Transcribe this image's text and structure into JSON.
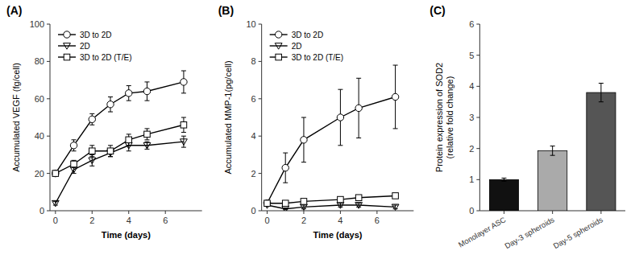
{
  "chart_data": [
    {
      "type": "line",
      "title": "(A)",
      "xlabel": "Time (days)",
      "ylabel": "Accumulated VEGF (fg/cell)",
      "xlim": [
        -0.3,
        8
      ],
      "xticks": [
        0,
        2,
        4,
        6
      ],
      "ylim": [
        0,
        100
      ],
      "yticks": [
        0,
        20,
        40,
        60,
        80,
        100
      ],
      "legend": "upper left",
      "x": [
        0,
        1,
        2,
        3,
        4,
        5,
        7
      ],
      "series": [
        {
          "name": "3D to 2D",
          "color": "#000000",
          "marker": "circle",
          "values": [
            20,
            35,
            49,
            57,
            63,
            64,
            69
          ],
          "yerr": [
            1,
            3,
            3,
            4,
            4,
            5,
            6
          ]
        },
        {
          "name": "2D",
          "color": "#000000",
          "marker": "triangle-down",
          "values": [
            4,
            22,
            27,
            31,
            35,
            35,
            37
          ],
          "yerr": [
            1,
            2,
            3,
            2,
            3,
            2,
            3
          ]
        },
        {
          "name": "3D to 2D (T/E)",
          "color": "#000000",
          "marker": "square",
          "values": [
            20,
            25,
            32,
            32,
            38,
            41,
            46
          ],
          "yerr": [
            1,
            2,
            3,
            3,
            3,
            3,
            4
          ]
        }
      ]
    },
    {
      "type": "line",
      "title": "(B)",
      "xlabel": "Time (days)",
      "ylabel": "Accumulated MMP-1(pg/cell)",
      "xlim": [
        -0.3,
        8
      ],
      "xticks": [
        0,
        2,
        4,
        6
      ],
      "ylim": [
        0,
        10
      ],
      "yticks": [
        0,
        2,
        4,
        6,
        8,
        10
      ],
      "legend": "upper left",
      "x": [
        0,
        1,
        2,
        4,
        5,
        7
      ],
      "series": [
        {
          "name": "3D to 2D",
          "color": "#000000",
          "marker": "circle",
          "values": [
            0.4,
            2.3,
            3.8,
            5.0,
            5.5,
            6.1
          ],
          "yerr": [
            0.1,
            0.8,
            1.2,
            1.5,
            1.6,
            1.7
          ]
        },
        {
          "name": "2D",
          "color": "#000000",
          "marker": "triangle-down",
          "values": [
            0.3,
            0.1,
            0.2,
            0.3,
            0.3,
            0.2
          ],
          "yerr": [
            0.05,
            0.05,
            0.1,
            0.1,
            0.1,
            0.1
          ]
        },
        {
          "name": "3D to 2D (T/E)",
          "color": "#000000",
          "marker": "square",
          "values": [
            0.4,
            0.4,
            0.5,
            0.6,
            0.7,
            0.8
          ],
          "yerr": [
            0.05,
            0.1,
            0.1,
            0.1,
            0.1,
            0.1
          ]
        }
      ]
    },
    {
      "type": "bar",
      "title": "(C)",
      "ylabel": "Protein expression of SOD2\n(relative fold change)",
      "ylim": [
        0,
        6
      ],
      "yticks": [
        0,
        1,
        2,
        3,
        4,
        5,
        6
      ],
      "categories": [
        "Monolayer ASC",
        "Day-3 spheroids",
        "Day-5 spheroids"
      ],
      "values": [
        1.0,
        1.93,
        3.8
      ],
      "yerr": [
        0.05,
        0.15,
        0.3
      ],
      "colors": [
        "#111111",
        "#aaaaaa",
        "#555555"
      ]
    }
  ]
}
